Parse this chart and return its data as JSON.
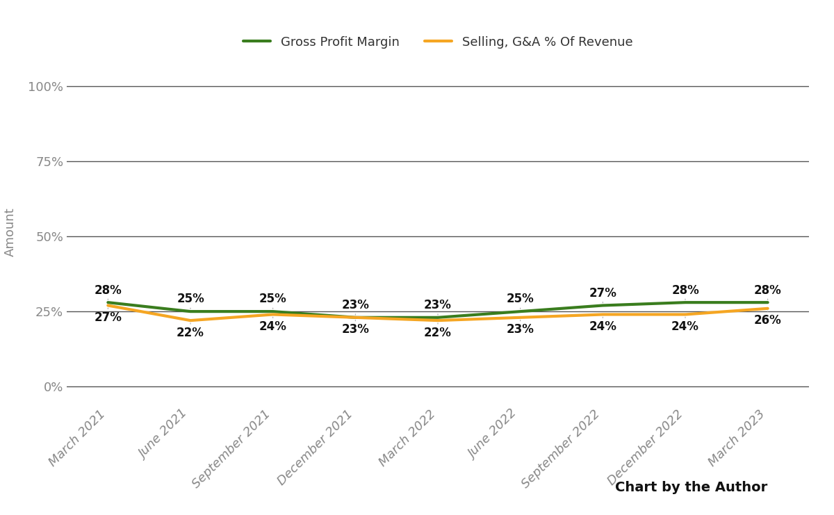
{
  "categories": [
    "March 2021",
    "June 2021",
    "September 2021",
    "December 2021",
    "March 2022",
    "June 2022",
    "September 2022",
    "December 2022",
    "March 2023"
  ],
  "gross_profit_margin": [
    0.28,
    0.25,
    0.25,
    0.23,
    0.23,
    0.25,
    0.27,
    0.28,
    0.28
  ],
  "selling_ga": [
    0.27,
    0.22,
    0.24,
    0.23,
    0.22,
    0.23,
    0.24,
    0.24,
    0.26
  ],
  "gross_profit_labels": [
    "28%",
    "25%",
    "25%",
    "23%",
    "23%",
    "25%",
    "27%",
    "28%",
    "28%"
  ],
  "selling_ga_labels": [
    "27%",
    "22%",
    "24%",
    "23%",
    "22%",
    "23%",
    "24%",
    "24%",
    "26%"
  ],
  "gross_profit_color": "#3a7d1e",
  "selling_ga_color": "#f5a623",
  "gross_profit_label": "Gross Profit Margin",
  "selling_ga_label": "Selling, G&A % Of Revenue",
  "ylabel": "Amount",
  "yticks": [
    0.0,
    0.25,
    0.5,
    0.75,
    1.0
  ],
  "ytick_labels": [
    "0%",
    "25%",
    "50%",
    "75%",
    "100%"
  ],
  "background_color": "#ffffff",
  "grid_color": "#555555",
  "line_width": 3.0,
  "annotation_fontsize": 12,
  "axis_label_fontsize": 13,
  "legend_fontsize": 13,
  "footer_text": "Chart by the Author",
  "footer_fontsize": 14,
  "annotation_color": "#111111"
}
